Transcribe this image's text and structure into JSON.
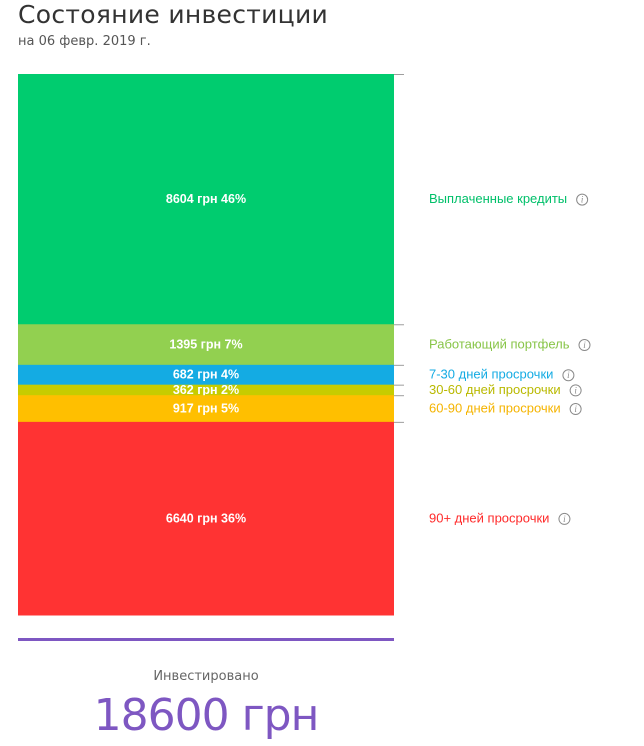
{
  "header": {
    "title": "Состояние инвестиции",
    "subtitle": "на 06 февр. 2019 г."
  },
  "chart_data": {
    "type": "bar",
    "orientation": "stacked-vertical",
    "unit": "грн",
    "segments": [
      {
        "name": "Выплаченные кредиты",
        "value": 8604,
        "percent": 46,
        "label": "8604 грн 46%",
        "color": "#00cc6f"
      },
      {
        "name": "Работающий портфель",
        "value": 1395,
        "percent": 7,
        "label": "1395 грн 7%",
        "color": "#92d050"
      },
      {
        "name": "7-30 дней просрочки",
        "value": 682,
        "percent": 4,
        "label": "682 грн 4%",
        "color": "#14abe3"
      },
      {
        "name": "30-60 дней просрочки",
        "value": 362,
        "percent": 2,
        "label": "362 грн 2%",
        "color": "#c7cc00"
      },
      {
        "name": "60-90 дней просрочки",
        "value": 917,
        "percent": 5,
        "label": "917 грн 5%",
        "color": "#ffbf00"
      },
      {
        "name": "90+ дней просрочки",
        "value": 6640,
        "percent": 36,
        "label": "6640 грн 36%",
        "color": "#ff3333"
      }
    ],
    "total": 18600,
    "label_colors": [
      "#00c06a",
      "#88c548",
      "#14abe3",
      "#b9b900",
      "#f5b400",
      "#ff2a2a"
    ]
  },
  "footer": {
    "total_label": "Инвестировано",
    "total_value": "18600 грн"
  },
  "colors": {
    "accent": "#7e57c2"
  }
}
